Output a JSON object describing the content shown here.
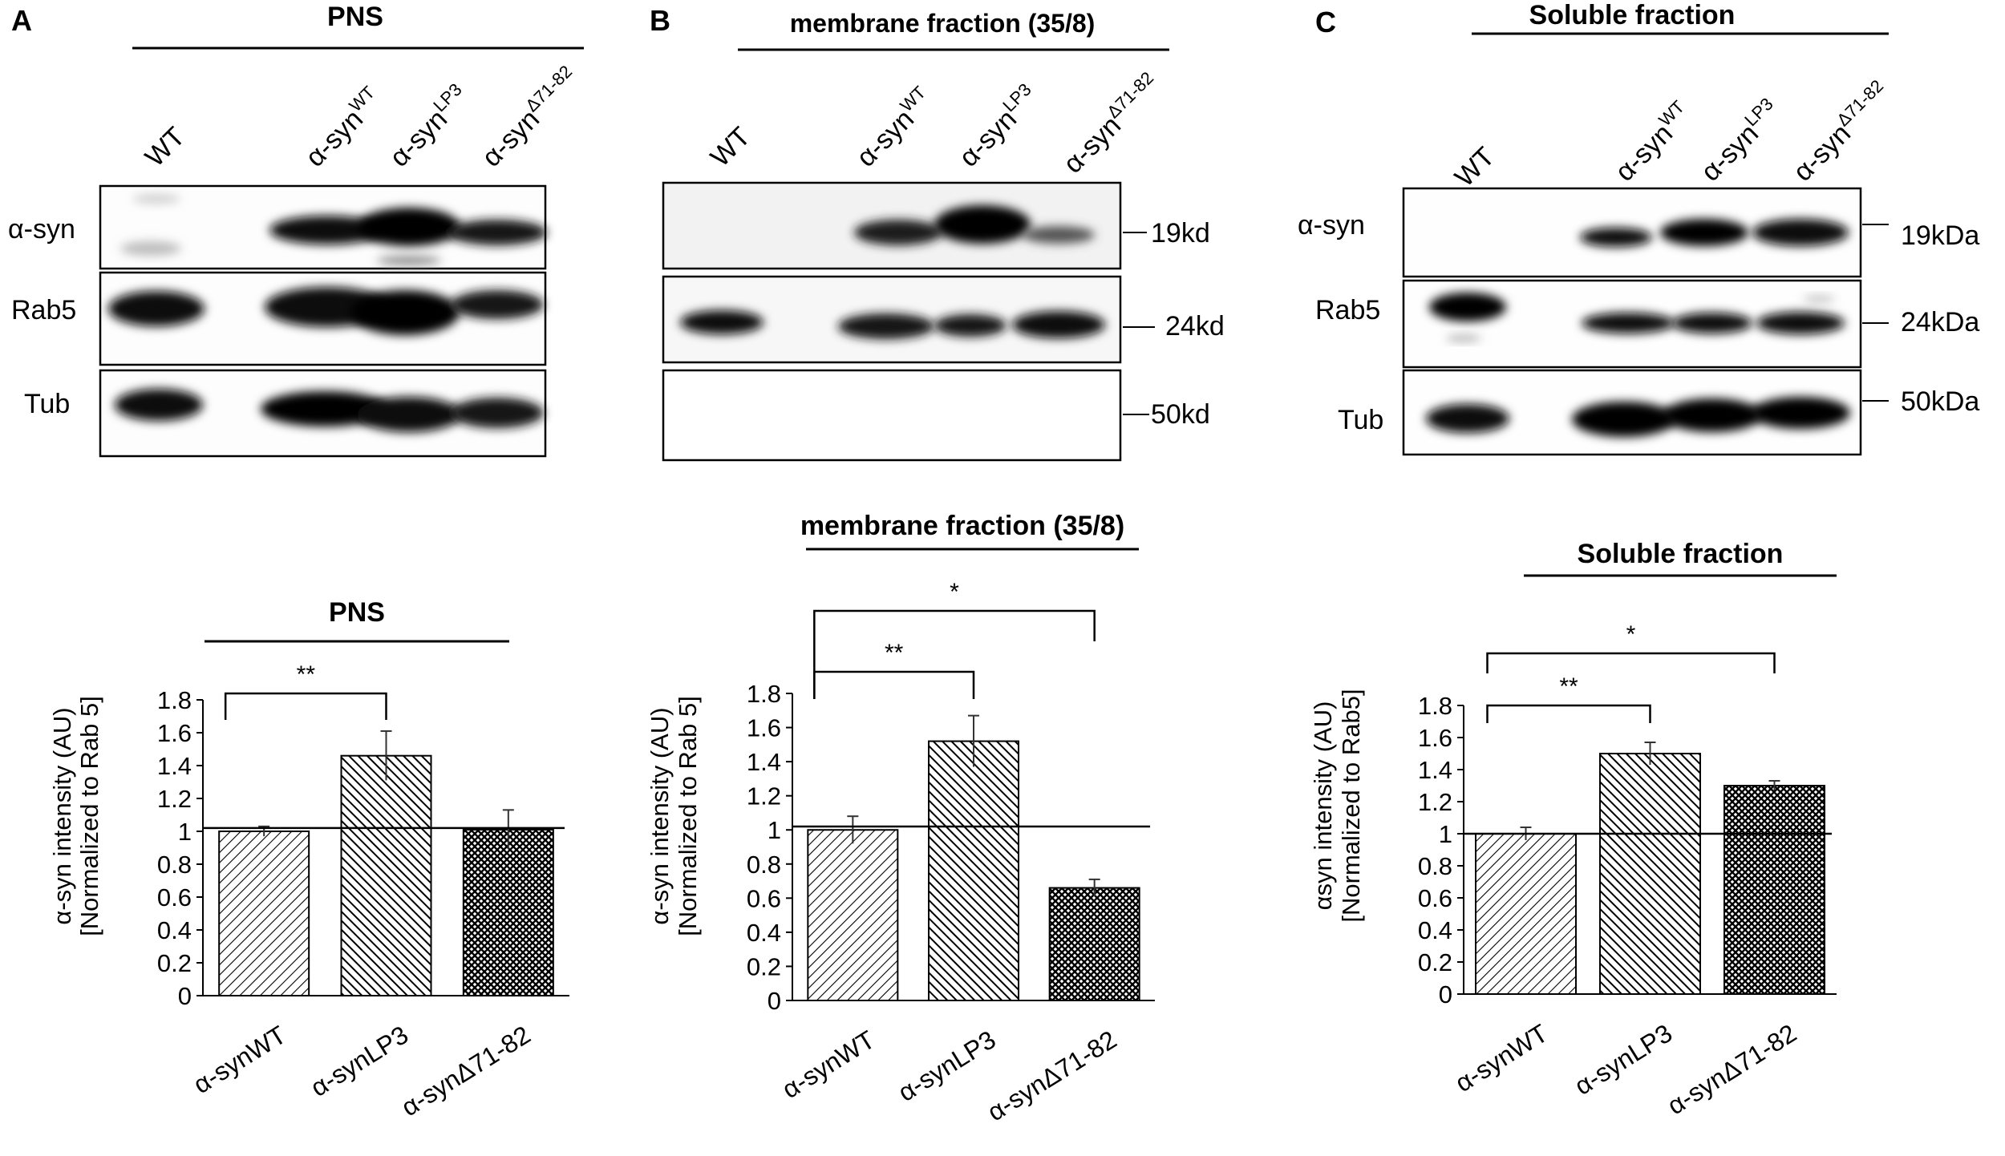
{
  "panels": [
    {
      "letter": "A",
      "blot": {
        "header": "PNS",
        "lanes": [
          {
            "main": "WT",
            "sup": ""
          },
          {
            "main": "α-syn",
            "sup": "WT"
          },
          {
            "main": "α-syn",
            "sup": "LP3"
          },
          {
            "main": "α-syn",
            "sup": "Δ71-82"
          }
        ],
        "rows": [
          "α-syn",
          "Rab5",
          "Tub"
        ],
        "markers": []
      }
    },
    {
      "letter": "B",
      "blot": {
        "header": "membrane fraction (35/8)",
        "lanes": [
          {
            "main": "WT",
            "sup": ""
          },
          {
            "main": "α-syn",
            "sup": "WT"
          },
          {
            "main": "α-syn",
            "sup": "LP3"
          },
          {
            "main": "α-syn",
            "sup": "Δ71-82"
          }
        ],
        "rows": [],
        "markers": [
          "19kd",
          "24kd",
          "50kd"
        ]
      }
    },
    {
      "letter": "C",
      "blot": {
        "header": "Soluble fraction",
        "lanes": [
          {
            "main": "WT",
            "sup": ""
          },
          {
            "main": "α-syn",
            "sup": "WT"
          },
          {
            "main": "α-syn",
            "sup": "LP3"
          },
          {
            "main": "α-syn",
            "sup": "Δ71-82"
          }
        ],
        "rows": [
          "α-syn",
          "Rab5",
          "Tub"
        ],
        "markers": [
          "19kDa",
          "24kDa",
          "50kDa"
        ]
      }
    }
  ],
  "chart_data": [
    {
      "type": "bar",
      "title": "PNS",
      "categories": [
        "α-synWT",
        "α-synLP3",
        "α-synΔ71-82"
      ],
      "values": [
        1.0,
        1.46,
        1.01
      ],
      "errors": [
        0.03,
        0.15,
        0.12
      ],
      "ylabel": [
        "α-syn intensity (AU)",
        "[Normalized to Rab 5]"
      ],
      "ylim": [
        0,
        1.8
      ],
      "yticks": [
        "0",
        "0.2",
        "0.4",
        "0.6",
        "0.8",
        "1",
        "1.2",
        "1.4",
        "1.6",
        "1.8"
      ],
      "reference_line": 1.02,
      "significance": [
        {
          "from": "α-synWT",
          "to": "α-synLP3",
          "label": "**"
        }
      ],
      "fill_patterns": [
        "diagonal-light",
        "diagonal-dense",
        "crosshatch"
      ],
      "colors": {
        "bar_edge": "#000000",
        "background": "#ffffff"
      }
    },
    {
      "type": "bar",
      "title": "membrane fraction (35/8)",
      "categories": [
        "α-synWT",
        "α-synLP3",
        "α-synΔ71-82"
      ],
      "values": [
        1.0,
        1.52,
        0.66
      ],
      "errors": [
        0.08,
        0.15,
        0.05
      ],
      "ylabel": [
        "α-syn intensity (AU)",
        "[Normalized to Rab 5]"
      ],
      "ylim": [
        0,
        1.8
      ],
      "yticks": [
        "0",
        "0.2",
        "0.4",
        "0.6",
        "0.8",
        "1",
        "1.2",
        "1.4",
        "1.6",
        "1.8"
      ],
      "reference_line": 1.02,
      "significance": [
        {
          "from": "α-synWT",
          "to": "α-synLP3",
          "label": "**"
        },
        {
          "from": "α-synWT",
          "to": "α-synΔ71-82",
          "label": "*"
        }
      ],
      "fill_patterns": [
        "diagonal-light",
        "diagonal-dense",
        "crosshatch"
      ],
      "colors": {
        "bar_edge": "#000000",
        "background": "#ffffff"
      }
    },
    {
      "type": "bar",
      "title": "Soluble fraction",
      "categories": [
        "α-synWT",
        "α-synLP3",
        "α-synΔ71-82"
      ],
      "values": [
        1.0,
        1.5,
        1.3
      ],
      "errors": [
        0.04,
        0.07,
        0.03
      ],
      "ylabel": [
        "αsyn intensity (AU)",
        "[Normalized to Rab5]"
      ],
      "ylim": [
        0,
        1.8
      ],
      "yticks": [
        "0",
        "0.2",
        "0.4",
        "0.6",
        "0.8",
        "1",
        "1.2",
        "1.4",
        "1.6",
        "1.8"
      ],
      "reference_line": 1.0,
      "significance": [
        {
          "from": "α-synWT",
          "to": "α-synLP3",
          "label": "**"
        },
        {
          "from": "α-synWT",
          "to": "α-synΔ71-82",
          "label": "*"
        }
      ],
      "fill_patterns": [
        "diagonal-light",
        "diagonal-dense",
        "crosshatch"
      ],
      "colors": {
        "bar_edge": "#000000",
        "background": "#ffffff"
      }
    }
  ]
}
